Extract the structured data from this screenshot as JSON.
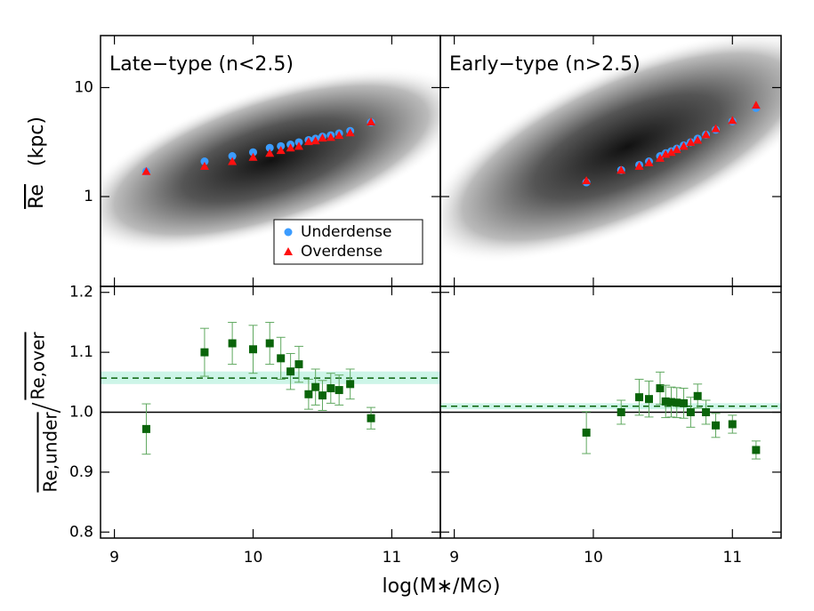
{
  "chart_data": [
    {
      "type": "scatter",
      "title": "Late−type (n<2.5)",
      "ylog": true,
      "y_label": {
        "quantity": "Re",
        "unit": "(kpc)"
      },
      "xlim": [
        8.9,
        11.35
      ],
      "xticks": [
        9,
        10,
        11
      ],
      "ylim": [
        0.15,
        30
      ],
      "yticks": [
        1,
        10
      ],
      "legend": "lower right",
      "x": [
        9.23,
        9.65,
        9.85,
        10.0,
        10.12,
        10.2,
        10.27,
        10.33,
        10.4,
        10.45,
        10.5,
        10.56,
        10.62,
        10.7,
        10.85
      ],
      "series": [
        {
          "name": "Underdense",
          "color": "#3b9cff",
          "marker": "circle",
          "values": [
            1.7,
            2.1,
            2.35,
            2.55,
            2.8,
            2.9,
            3.0,
            3.15,
            3.3,
            3.4,
            3.55,
            3.65,
            3.8,
            4.0,
            4.8
          ]
        },
        {
          "name": "Overdense",
          "color": "#ff1010",
          "marker": "triangle",
          "values": [
            1.7,
            1.9,
            2.1,
            2.3,
            2.5,
            2.65,
            2.8,
            2.9,
            3.2,
            3.25,
            3.45,
            3.5,
            3.65,
            3.85,
            4.85
          ]
        }
      ]
    },
    {
      "type": "scatter",
      "title": "Early−type (n>2.5)",
      "ylog": true,
      "xlim": [
        8.9,
        11.35
      ],
      "xticks": [
        9,
        10,
        11
      ],
      "ylim": [
        0.15,
        30
      ],
      "yticks": [
        1,
        10
      ],
      "x": [
        9.95,
        10.2,
        10.33,
        10.4,
        10.48,
        10.52,
        10.56,
        10.6,
        10.65,
        10.7,
        10.75,
        10.81,
        10.88,
        11.0,
        11.17
      ],
      "series": [
        {
          "name": "Underdense",
          "color": "#3b9cff",
          "marker": "circle",
          "values": [
            1.35,
            1.75,
            1.95,
            2.1,
            2.35,
            2.5,
            2.6,
            2.75,
            2.95,
            3.15,
            3.4,
            3.7,
            4.1,
            4.9,
            6.5
          ]
        },
        {
          "name": "Overdense",
          "color": "#ff1010",
          "marker": "triangle",
          "values": [
            1.4,
            1.75,
            1.9,
            2.05,
            2.25,
            2.45,
            2.55,
            2.7,
            2.9,
            3.15,
            3.3,
            3.7,
            4.2,
            5.0,
            6.9
          ]
        }
      ]
    },
    {
      "type": "errorbar",
      "y_label": [
        "Re,under",
        "Re,over"
      ],
      "xlim": [
        8.9,
        11.35
      ],
      "xticks": [
        9,
        10,
        11
      ],
      "ylim": [
        0.79,
        1.21
      ],
      "yticks": [
        0.8,
        0.9,
        {
          "value": 1,
          "label": "1.0"
        },
        1.1,
        1.2
      ],
      "color": "#0a640a",
      "error_color": "#5fa85f",
      "band_color": "#cdf5e8",
      "reference": 1,
      "mean": 1.057,
      "band": [
        1.047,
        1.068
      ],
      "x": [
        9.23,
        9.65,
        9.85,
        10.0,
        10.12,
        10.2,
        10.27,
        10.33,
        10.4,
        10.45,
        10.5,
        10.56,
        10.62,
        10.7,
        10.85
      ],
      "values": [
        0.972,
        1.1,
        1.115,
        1.105,
        1.115,
        1.09,
        1.068,
        1.08,
        1.03,
        1.042,
        1.028,
        1.04,
        1.037,
        1.047,
        0.99
      ],
      "errors": [
        0.042,
        0.04,
        0.035,
        0.04,
        0.035,
        0.035,
        0.03,
        0.03,
        0.025,
        0.03,
        0.025,
        0.025,
        0.025,
        0.025,
        0.018
      ]
    },
    {
      "type": "errorbar",
      "xlim": [
        8.9,
        11.35
      ],
      "xticks": [
        9,
        10,
        11
      ],
      "ylim": [
        0.79,
        1.21
      ],
      "yticks": [
        0.8,
        0.9,
        {
          "value": 1,
          "label": "1.0"
        },
        1.1,
        1.2
      ],
      "color": "#0a640a",
      "error_color": "#5fa85f",
      "band_color": "#cdf5e8",
      "reference": 1,
      "mean": 1.01,
      "band": [
        1.005,
        1.015
      ],
      "x": [
        9.95,
        10.2,
        10.33,
        10.4,
        10.48,
        10.52,
        10.56,
        10.6,
        10.65,
        10.7,
        10.75,
        10.81,
        10.88,
        11.0,
        11.17
      ],
      "values": [
        0.966,
        1.0,
        1.025,
        1.022,
        1.04,
        1.018,
        1.017,
        1.016,
        1.015,
        1.0,
        1.027,
        1.0,
        0.978,
        0.98,
        0.937
      ],
      "errors": [
        0.035,
        0.02,
        0.03,
        0.03,
        0.027,
        0.027,
        0.025,
        0.025,
        0.025,
        0.025,
        0.02,
        0.02,
        0.02,
        0.015,
        0.015
      ]
    }
  ],
  "x_label": "log(M∗/M⊙)"
}
